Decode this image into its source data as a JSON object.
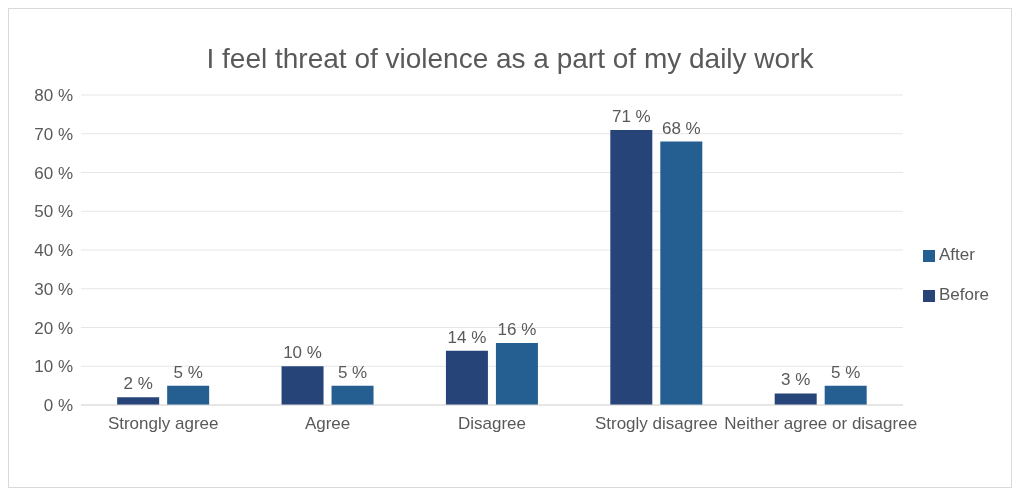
{
  "chart_data": {
    "type": "bar",
    "title": "I feel threat of violence as a part of my daily work",
    "categories": [
      "Strongly agree",
      "Agree",
      "Disagree",
      "Strogly disagree",
      "Neither agree or disagree"
    ],
    "series": [
      {
        "name": "Before",
        "color": "#264478",
        "values": [
          2,
          10,
          14,
          71,
          3
        ],
        "value_labels": [
          "2 %",
          "10 %",
          "14 %",
          "71 %",
          "3 %"
        ]
      },
      {
        "name": "After",
        "color": "#255e91",
        "values": [
          5,
          5,
          16,
          68,
          5
        ],
        "value_labels": [
          "5 %",
          "5 %",
          "16 %",
          "68 %",
          "5 %"
        ]
      }
    ],
    "ylim": [
      0,
      80
    ],
    "yticks": [
      {
        "value": 0,
        "label": "0 %"
      },
      {
        "value": 10,
        "label": "10 %"
      },
      {
        "value": 20,
        "label": "20 %"
      },
      {
        "value": 30,
        "label": "30 %"
      },
      {
        "value": 40,
        "label": "40 %"
      },
      {
        "value": 50,
        "label": "50 %"
      },
      {
        "value": 60,
        "label": "60 %"
      },
      {
        "value": 70,
        "label": "70 %"
      },
      {
        "value": 80,
        "label": "80 %"
      }
    ],
    "grid": "y",
    "legend": "right"
  }
}
